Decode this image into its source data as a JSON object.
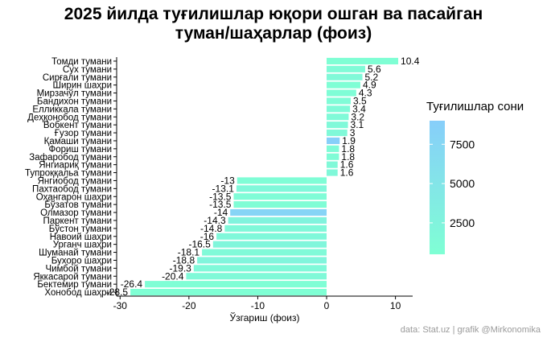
{
  "title": {
    "line1": "2025 йилда  туғилишлар юқори ошган ва пасайган",
    "line2": "туман/шаҳарлар (фоиз)"
  },
  "caption": "data: Stat.uz | grafik @Mirkonomika",
  "legend": {
    "title": "Туғилишлар сони",
    "ticks": [
      2500,
      5000,
      7500
    ],
    "range": [
      500,
      9000
    ],
    "color_low": "#7fffd4",
    "color_high": "#87cefa"
  },
  "chart_data": {
    "type": "bar",
    "orientation": "horizontal",
    "xlabel": "Ўзгариш (фоиз)",
    "xticks": [
      -30,
      -20,
      -10,
      0,
      10
    ],
    "xlim": [
      -30.5,
      12.5
    ],
    "color_encoding": "Туғилишлар сони",
    "bars": [
      {
        "name": "Томди тумани",
        "value": 10.4,
        "births": 600
      },
      {
        "name": "Сух тумани",
        "value": 5.6,
        "births": 1200
      },
      {
        "name": "Сирғали тумани",
        "value": 5.2,
        "births": 1500
      },
      {
        "name": "Ширин шаҳри",
        "value": 4.9,
        "births": 700
      },
      {
        "name": "Мирзачўл тумани",
        "value": 4.3,
        "births": 900
      },
      {
        "name": "Бандихон тумани",
        "value": 3.5,
        "births": 1100
      },
      {
        "name": "Елликкала тумани",
        "value": 3.4,
        "births": 1300
      },
      {
        "name": "Деҳқонобод тумани",
        "value": 3.2,
        "births": 1400
      },
      {
        "name": "Вобкент тумани",
        "value": 3.1,
        "births": 1600
      },
      {
        "name": "Ғузор тумани",
        "value": 3.0,
        "births": 1500
      },
      {
        "name": "Қамаши тумани",
        "value": 1.9,
        "births": 8800
      },
      {
        "name": "Фориш тумани",
        "value": 1.8,
        "births": 1200
      },
      {
        "name": "Зафаробод тумани",
        "value": 1.8,
        "births": 1000
      },
      {
        "name": "Янгиариқ тумани",
        "value": 1.6,
        "births": 1500
      },
      {
        "name": "Тупроққальа тумани",
        "value": 1.6,
        "births": 1700
      },
      {
        "name": "Янгиобод тумани",
        "value": -13.0,
        "births": 900
      },
      {
        "name": "Пахтаобод тумани",
        "value": -13.1,
        "births": 1800
      },
      {
        "name": "Оҳангарон шаҳри",
        "value": -13.5,
        "births": 1100
      },
      {
        "name": "Бўзатов тумани",
        "value": -13.5,
        "births": 800
      },
      {
        "name": "Олмазор тумани",
        "value": -14.0,
        "births": 8000
      },
      {
        "name": "Паркент тумани",
        "value": -14.3,
        "births": 2500
      },
      {
        "name": "Бўстон тумани",
        "value": -14.8,
        "births": 1700
      },
      {
        "name": "Навоий шаҳри",
        "value": -16.0,
        "births": 1800
      },
      {
        "name": "Урганч шаҳри",
        "value": -16.5,
        "births": 2000
      },
      {
        "name": "Шуманай тумани",
        "value": -18.1,
        "births": 1300
      },
      {
        "name": "Бухоро шаҳри",
        "value": -18.8,
        "births": 2200
      },
      {
        "name": "Чимбой тумани",
        "value": -19.3,
        "births": 1600
      },
      {
        "name": "Яккасарой тумани",
        "value": -20.4,
        "births": 1500
      },
      {
        "name": "Бектемир тумани",
        "value": -26.4,
        "births": 700
      },
      {
        "name": "Хонобод шаҳри",
        "value": -28.5,
        "births": 500
      }
    ]
  }
}
